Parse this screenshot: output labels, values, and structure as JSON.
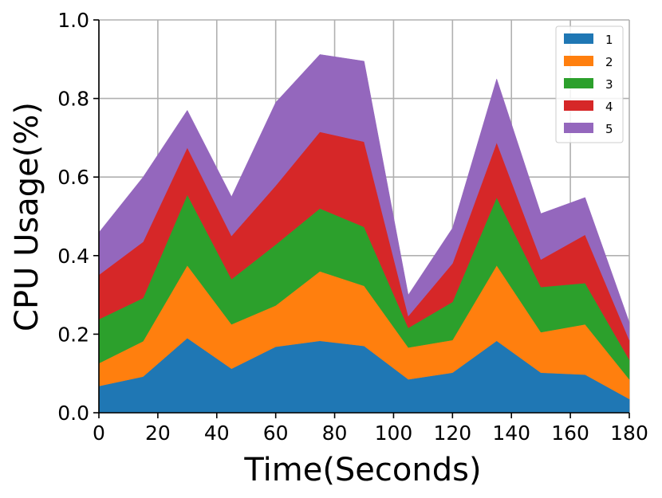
{
  "chart_data": {
    "type": "area",
    "stacked": true,
    "xlabel": "Time(Seconds)",
    "ylabel": "CPU Usage(%)",
    "xlim": [
      0,
      180
    ],
    "ylim": [
      0,
      1.0
    ],
    "xticks": [
      0,
      20,
      40,
      60,
      80,
      100,
      120,
      140,
      160,
      180
    ],
    "yticks": [
      0.0,
      0.2,
      0.4,
      0.6,
      0.8,
      1.0
    ],
    "xtick_labels": [
      "0",
      "20",
      "40",
      "60",
      "80",
      "100",
      "120",
      "140",
      "160",
      "180"
    ],
    "ytick_labels": [
      "0.0",
      "0.2",
      "0.4",
      "0.6",
      "0.8",
      "1.0"
    ],
    "grid": true,
    "legend_position": "top-right",
    "x": [
      0,
      15,
      30,
      45,
      60,
      75,
      90,
      105,
      120,
      135,
      150,
      165,
      180
    ],
    "series": [
      {
        "name": "1",
        "color": "#1f77b4",
        "values": [
          0.068,
          0.092,
          0.19,
          0.112,
          0.168,
          0.183,
          0.17,
          0.085,
          0.102,
          0.183,
          0.102,
          0.097,
          0.035
        ]
      },
      {
        "name": "2",
        "color": "#ff7f0e",
        "values": [
          0.058,
          0.09,
          0.185,
          0.113,
          0.105,
          0.177,
          0.153,
          0.081,
          0.083,
          0.192,
          0.103,
          0.128,
          0.05
        ]
      },
      {
        "name": "3",
        "color": "#2ca02c",
        "values": [
          0.112,
          0.11,
          0.18,
          0.115,
          0.155,
          0.16,
          0.15,
          0.05,
          0.097,
          0.173,
          0.115,
          0.105,
          0.05
        ]
      },
      {
        "name": "4",
        "color": "#d62728",
        "values": [
          0.113,
          0.143,
          0.12,
          0.11,
          0.15,
          0.195,
          0.217,
          0.03,
          0.098,
          0.14,
          0.07,
          0.123,
          0.05
        ]
      },
      {
        "name": "5",
        "color": "#9467bd",
        "values": [
          0.108,
          0.165,
          0.095,
          0.1,
          0.212,
          0.197,
          0.205,
          0.054,
          0.09,
          0.162,
          0.117,
          0.095,
          0.045
        ]
      }
    ]
  }
}
